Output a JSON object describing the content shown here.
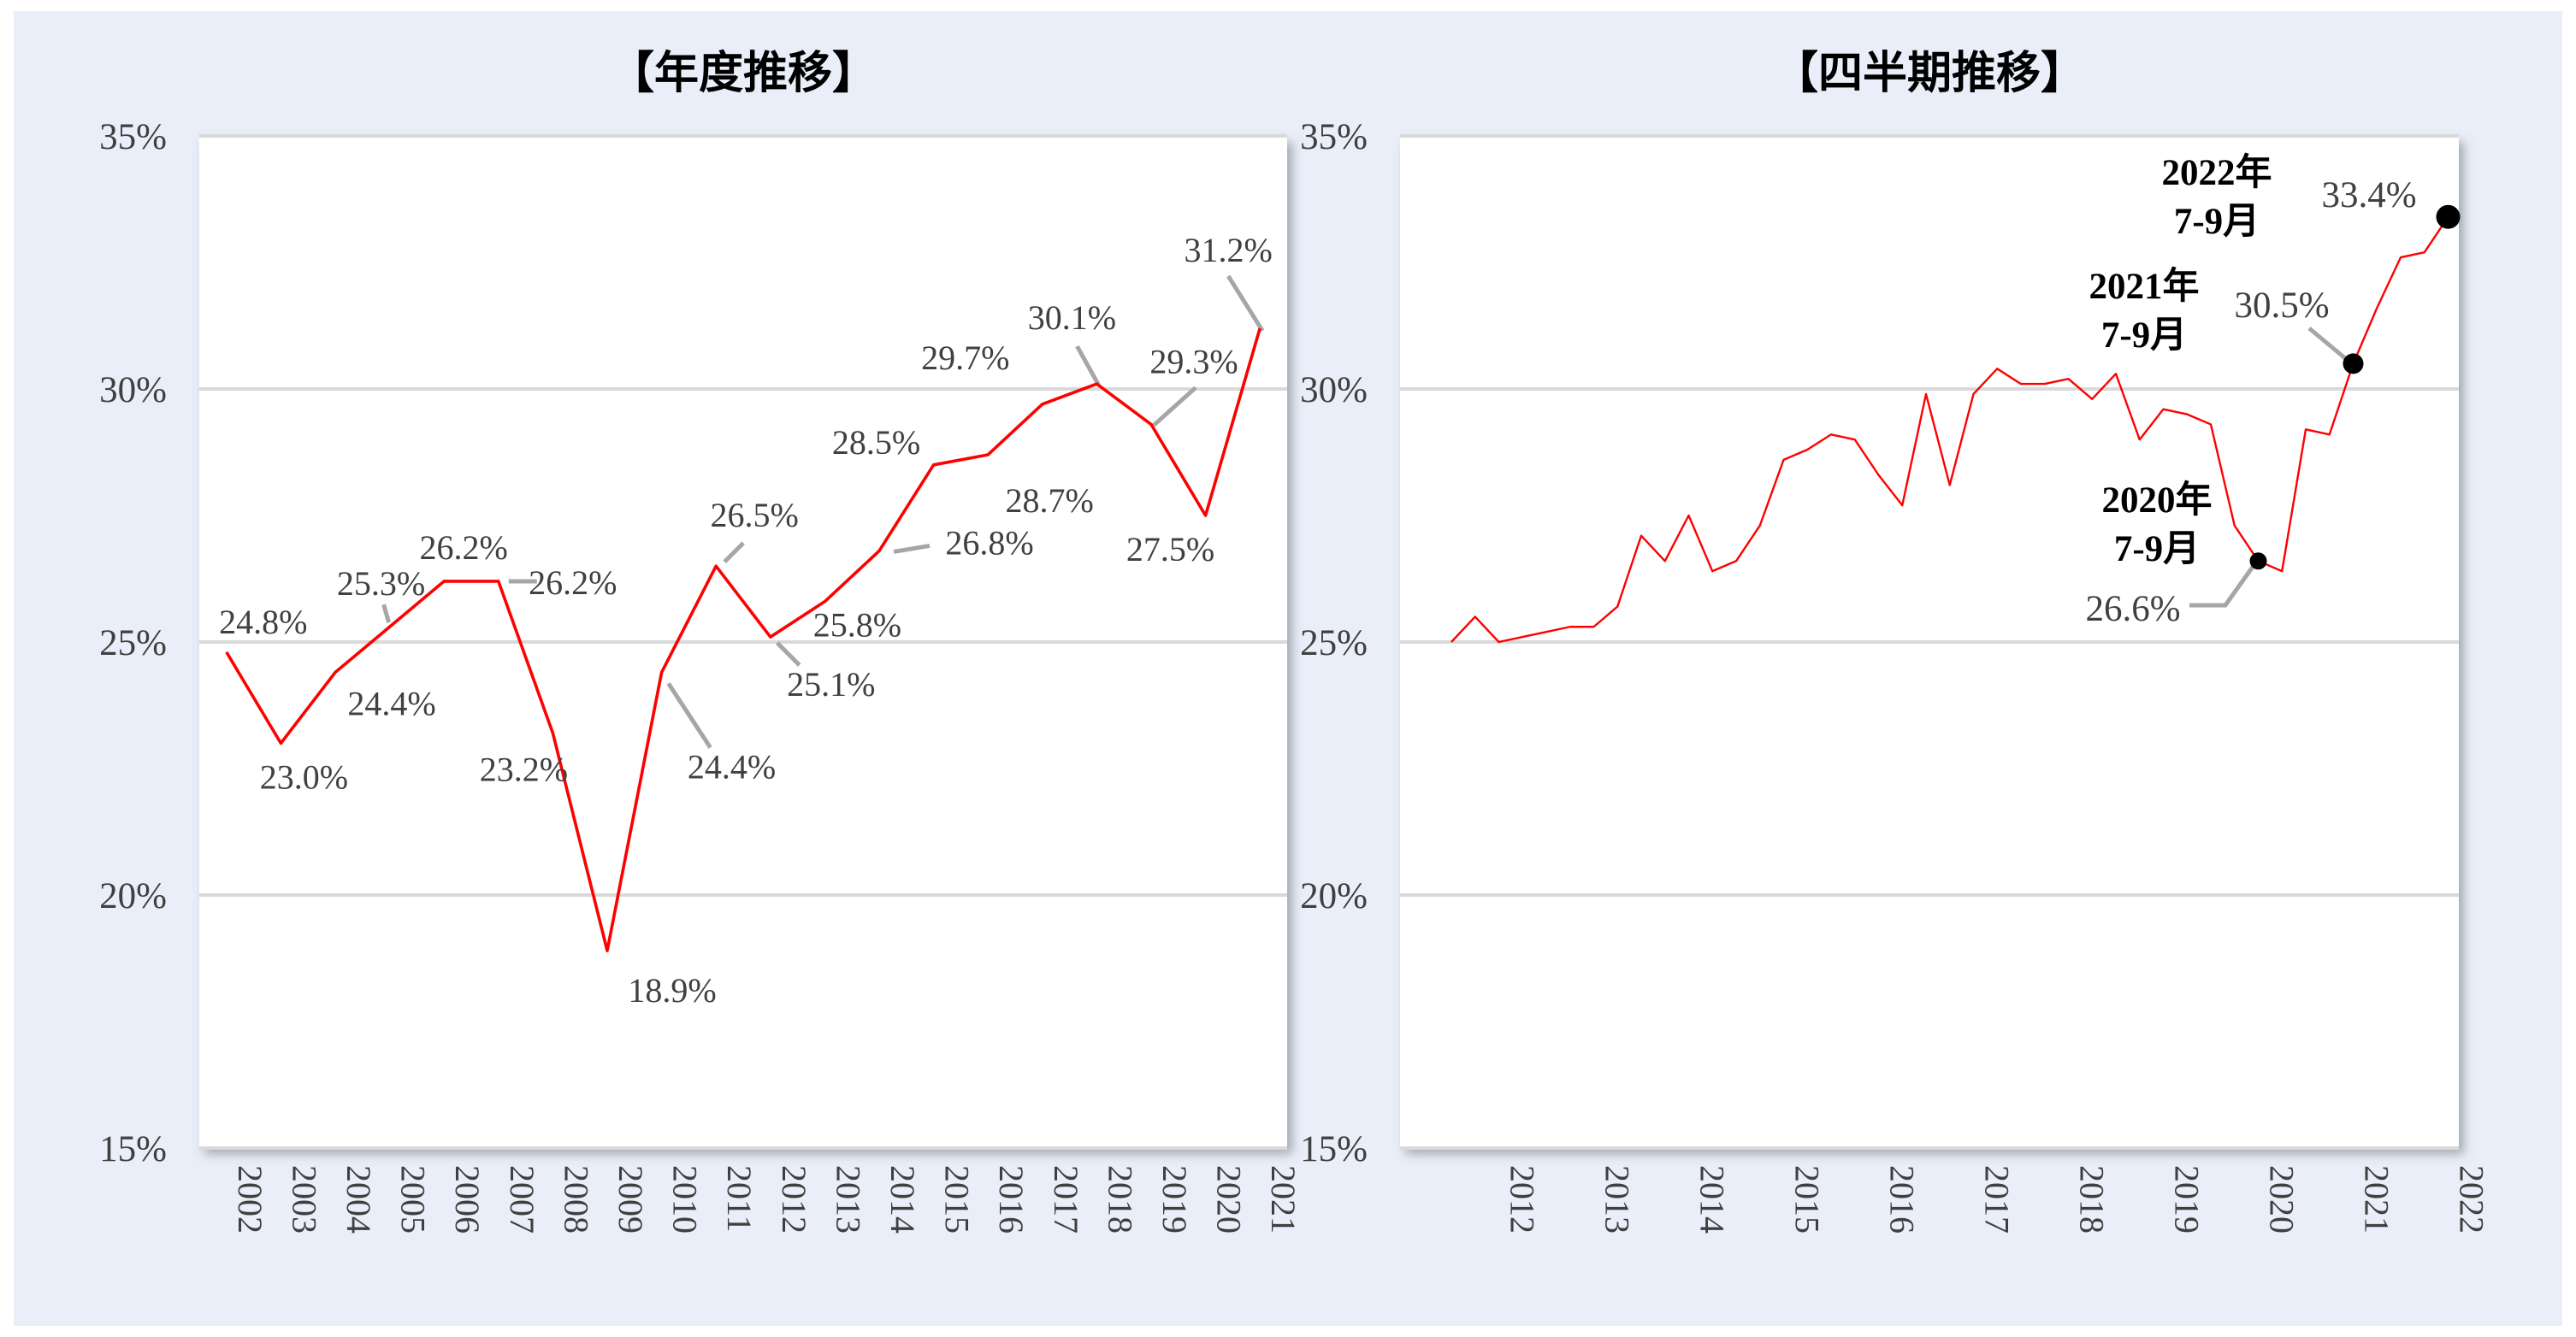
{
  "background_color": "#e9eef8",
  "line_color": "#ff0000",
  "grid_color": "#d9d9d9",
  "leader_color": "#a6a6a6",
  "tick_color": "#3f3f3f",
  "dot_color": "#000000",
  "chart_data": [
    {
      "type": "line",
      "title": "【年度推移】",
      "xlabel": "",
      "ylabel": "",
      "ylim": [
        15,
        35
      ],
      "ytick_labels": [
        "35%",
        "30%",
        "25%",
        "20%",
        "15%"
      ],
      "grid": true,
      "legend": "none",
      "categories": [
        "2002",
        "2003",
        "2004",
        "2005",
        "2006",
        "2007",
        "2008",
        "2009",
        "2010",
        "2011",
        "2012",
        "2013",
        "2014",
        "2015",
        "2016",
        "2017",
        "2018",
        "2019",
        "2020",
        "2021"
      ],
      "values": [
        24.8,
        23.0,
        24.4,
        25.3,
        26.2,
        26.2,
        23.2,
        18.9,
        24.4,
        26.5,
        25.1,
        25.8,
        26.8,
        28.5,
        28.7,
        29.7,
        30.1,
        29.3,
        27.5,
        31.2
      ],
      "data_labels": [
        "24.8%",
        "23.0%",
        "24.4%",
        "25.3%",
        "26.2%",
        "26.2%",
        "23.2%",
        "18.9%",
        "24.4%",
        "26.5%",
        "25.1%",
        "25.8%",
        "26.8%",
        "28.5%",
        "28.7%",
        "29.7%",
        "30.1%",
        "29.3%",
        "27.5%",
        "31.2%"
      ]
    },
    {
      "type": "line",
      "title": "【四半期推移】",
      "xlabel": "",
      "ylabel": "",
      "ylim": [
        15,
        35
      ],
      "ytick_labels": [
        "35%",
        "30%",
        "25%",
        "20%",
        "15%"
      ],
      "grid": true,
      "legend": "none",
      "period": "quarterly",
      "start_quarter": "2012 Q1",
      "end_quarter": "2022 Q3",
      "year_labels": [
        "2012",
        "2013",
        "2014",
        "2015",
        "2016",
        "2017",
        "2018",
        "2019",
        "2020",
        "2021",
        "2022"
      ],
      "values": [
        25.0,
        25.5,
        25.0,
        25.1,
        25.2,
        25.3,
        25.3,
        25.7,
        27.1,
        26.6,
        27.5,
        26.4,
        26.6,
        27.3,
        28.6,
        28.8,
        29.1,
        29.0,
        28.3,
        27.7,
        29.9,
        28.1,
        29.9,
        30.4,
        30.1,
        30.1,
        30.2,
        29.8,
        30.3,
        29.0,
        29.6,
        29.5,
        29.3,
        27.3,
        26.6,
        26.4,
        29.2,
        29.1,
        30.5,
        31.6,
        32.6,
        32.7,
        33.4
      ],
      "annotations": [
        {
          "quarter_index": 34,
          "period_lines": [
            "2020年",
            "7-9月"
          ],
          "value": 26.6,
          "value_label": "26.6%"
        },
        {
          "quarter_index": 38,
          "period_lines": [
            "2021年",
            "7-9月"
          ],
          "value": 30.5,
          "value_label": "30.5%"
        },
        {
          "quarter_index": 42,
          "period_lines": [
            "2022年",
            "7-9月"
          ],
          "value": 33.4,
          "value_label": "33.4%"
        }
      ]
    }
  ]
}
